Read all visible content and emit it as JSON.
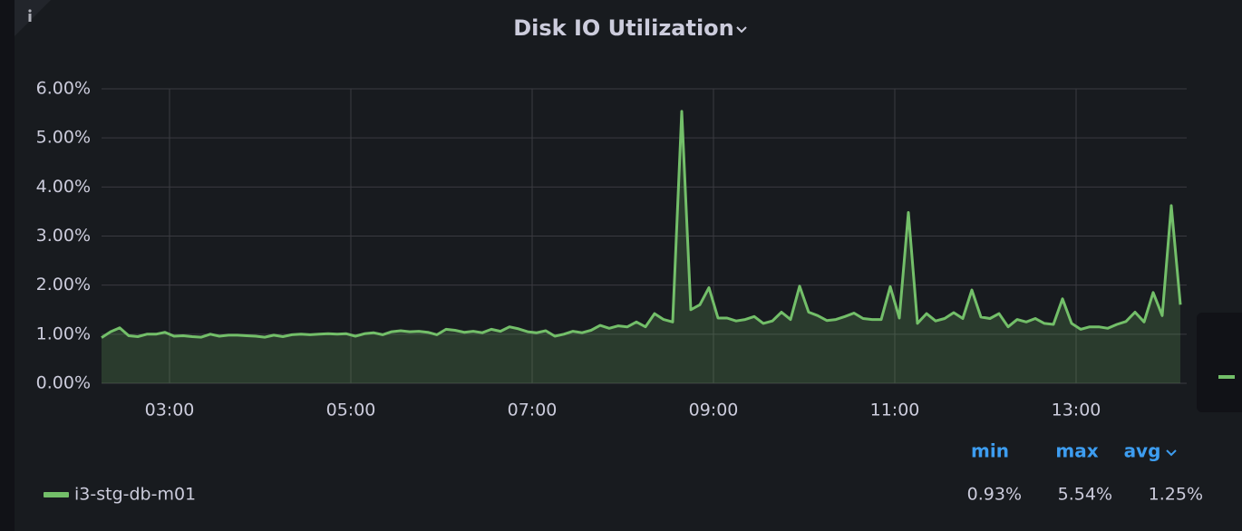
{
  "chart_data": {
    "type": "line",
    "title": "Disk IO Utilization",
    "x": [
      2.25,
      2.35,
      2.45,
      2.55,
      2.65,
      2.75,
      2.85,
      2.95,
      3.05,
      3.15,
      3.25,
      3.35,
      3.45,
      3.55,
      3.65,
      3.75,
      3.85,
      3.95,
      4.05,
      4.15,
      4.25,
      4.35,
      4.45,
      4.55,
      4.65,
      4.75,
      4.85,
      4.95,
      5.05,
      5.15,
      5.25,
      5.35,
      5.45,
      5.55,
      5.65,
      5.75,
      5.85,
      5.95,
      6.05,
      6.15,
      6.25,
      6.35,
      6.45,
      6.55,
      6.65,
      6.75,
      6.85,
      6.95,
      7.05,
      7.15,
      7.25,
      7.35,
      7.45,
      7.55,
      7.65,
      7.75,
      7.85,
      7.95,
      8.05,
      8.15,
      8.25,
      8.35,
      8.45,
      8.55,
      8.65,
      8.75,
      8.85,
      8.95,
      9.05,
      9.15,
      9.25,
      9.35,
      9.45,
      9.55,
      9.65,
      9.75,
      9.85,
      9.95,
      10.05,
      10.15,
      10.25,
      10.35,
      10.45,
      10.55,
      10.65,
      10.75,
      10.85,
      10.95,
      11.05,
      11.15,
      11.25,
      11.35,
      11.45,
      11.55,
      11.65,
      11.75,
      11.85,
      11.95,
      12.05,
      12.15,
      12.25,
      12.35,
      12.45,
      12.55,
      12.65,
      12.75,
      12.85,
      12.95,
      13.05,
      13.15,
      13.25,
      13.35,
      13.45,
      13.55,
      13.65,
      13.75,
      13.85,
      13.95,
      14.05,
      14.15
    ],
    "series": [
      {
        "name": "i3-stg-db-m01",
        "color": "#73bf69",
        "values": [
          0.93,
          1.05,
          1.13,
          0.97,
          0.95,
          1.0,
          1.0,
          1.04,
          0.96,
          0.97,
          0.95,
          0.94,
          1.0,
          0.96,
          0.98,
          0.98,
          0.97,
          0.96,
          0.94,
          0.98,
          0.95,
          0.99,
          1.0,
          0.99,
          1.0,
          1.01,
          1.0,
          1.01,
          0.96,
          1.01,
          1.03,
          0.99,
          1.05,
          1.07,
          1.05,
          1.06,
          1.04,
          0.99,
          1.1,
          1.08,
          1.04,
          1.06,
          1.03,
          1.1,
          1.06,
          1.15,
          1.11,
          1.05,
          1.03,
          1.07,
          0.96,
          1.0,
          1.06,
          1.03,
          1.08,
          1.18,
          1.12,
          1.17,
          1.15,
          1.25,
          1.15,
          1.42,
          1.3,
          1.25,
          5.54,
          1.5,
          1.6,
          1.95,
          1.33,
          1.33,
          1.27,
          1.3,
          1.36,
          1.22,
          1.27,
          1.45,
          1.3,
          1.98,
          1.45,
          1.38,
          1.28,
          1.3,
          1.36,
          1.43,
          1.32,
          1.3,
          1.3,
          1.97,
          1.33,
          3.48,
          1.22,
          1.42,
          1.27,
          1.32,
          1.44,
          1.32,
          1.9,
          1.35,
          1.32,
          1.42,
          1.15,
          1.3,
          1.25,
          1.32,
          1.22,
          1.2,
          1.72,
          1.22,
          1.1,
          1.15,
          1.15,
          1.12,
          1.2,
          1.26,
          1.45,
          1.25,
          1.85,
          1.38,
          3.62,
          1.6
        ],
        "legend_values": [
          0.93,
          5.54,
          1.25
        ],
        "legend_value_labels": [
          "0.93%",
          "5.54%",
          "1.25%"
        ]
      }
    ],
    "legend_columns": [
      "min",
      "max",
      "avg"
    ],
    "xlim": [
      2.25,
      14.22
    ],
    "xticks": [
      {
        "value": 3,
        "label": "03:00"
      },
      {
        "value": 5,
        "label": "05:00"
      },
      {
        "value": 7,
        "label": "07:00"
      },
      {
        "value": 9,
        "label": "09:00"
      },
      {
        "value": 11,
        "label": "11:00"
      },
      {
        "value": 13,
        "label": "13:00"
      }
    ],
    "ylim": [
      0,
      6
    ],
    "yticks": [
      {
        "value": 0,
        "label": "0.00%"
      },
      {
        "value": 1,
        "label": "1.00%"
      },
      {
        "value": 2,
        "label": "2.00%"
      },
      {
        "value": 3,
        "label": "3.00%"
      },
      {
        "value": 4,
        "label": "4.00%"
      },
      {
        "value": 5,
        "label": "5.00%"
      },
      {
        "value": 6,
        "label": "6.00%"
      }
    ],
    "grid": true
  }
}
